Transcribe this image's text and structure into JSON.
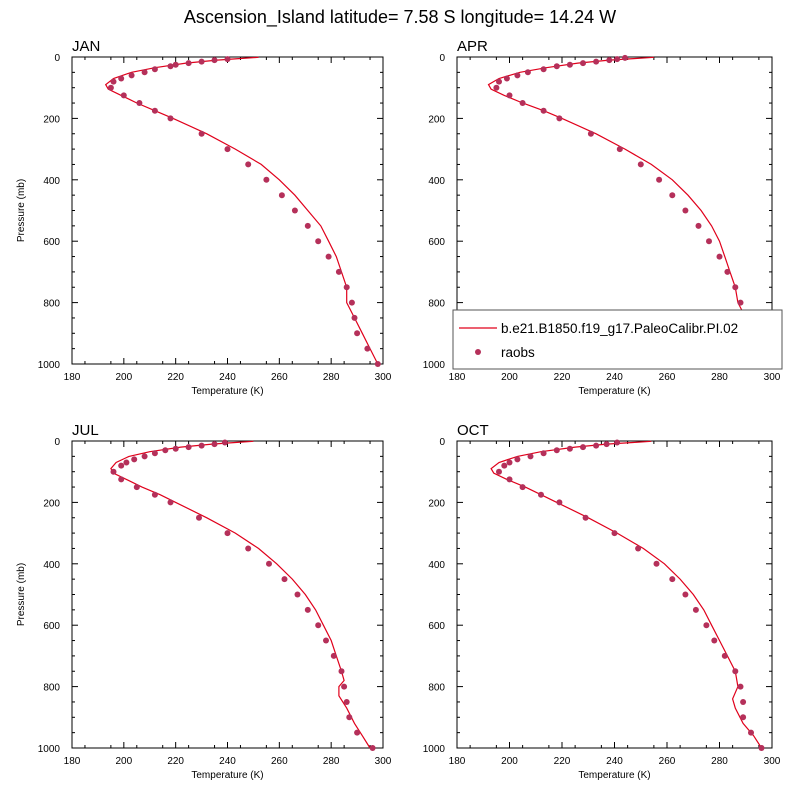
{
  "figure": {
    "title": "Ascension_Island  latitude= 7.58 S longitude= 14.24 W"
  },
  "colors": {
    "model_line": "#e0001b",
    "obs_marker": "#b5305a"
  },
  "chart_data": [
    {
      "type": "line",
      "panel_label": "JAN",
      "xlabel": "Temperature (K)",
      "ylabel": "Pressure (mb)",
      "xlim": [
        180,
        300
      ],
      "ylim": [
        1000,
        0
      ],
      "xticks": [
        "180",
        "200",
        "220",
        "240",
        "260",
        "280",
        "300"
      ],
      "yticks": [
        "0",
        "200",
        "400",
        "600",
        "800",
        "1000"
      ],
      "series": [
        {
          "kind": "line",
          "points": [
            [
              252,
              1
            ],
            [
              245,
              5
            ],
            [
              236,
              10
            ],
            [
              224,
              20
            ],
            [
              212,
              35
            ],
            [
              203,
              50
            ],
            [
              196,
              70
            ],
            [
              193,
              90
            ],
            [
              194,
              105
            ],
            [
              199,
              125
            ],
            [
              205,
              150
            ],
            [
              212,
              175
            ],
            [
              219,
              200
            ],
            [
              232,
              250
            ],
            [
              243,
              300
            ],
            [
              253,
              350
            ],
            [
              260,
              400
            ],
            [
              266,
              450
            ],
            [
              271,
              500
            ],
            [
              276,
              550
            ],
            [
              279,
              600
            ],
            [
              282,
              650
            ],
            [
              284,
              700
            ],
            [
              286,
              750
            ],
            [
              286,
              800
            ],
            [
              289,
              850
            ],
            [
              292,
              900
            ],
            [
              295,
              950
            ],
            [
              298,
              1000
            ]
          ]
        },
        {
          "kind": "scatter",
          "points": [
            [
              240,
              7
            ],
            [
              235,
              10
            ],
            [
              230,
              15
            ],
            [
              225,
              20
            ],
            [
              220,
              25
            ],
            [
              218,
              30
            ],
            [
              212,
              40
            ],
            [
              208,
              50
            ],
            [
              203,
              60
            ],
            [
              199,
              70
            ],
            [
              196,
              80
            ],
            [
              195,
              100
            ],
            [
              200,
              125
            ],
            [
              206,
              150
            ],
            [
              212,
              175
            ],
            [
              218,
              200
            ],
            [
              230,
              250
            ],
            [
              240,
              300
            ],
            [
              248,
              350
            ],
            [
              255,
              400
            ],
            [
              261,
              450
            ],
            [
              266,
              500
            ],
            [
              271,
              550
            ],
            [
              275,
              600
            ],
            [
              279,
              650
            ],
            [
              283,
              700
            ],
            [
              286,
              750
            ],
            [
              288,
              800
            ],
            [
              289,
              850
            ],
            [
              290,
              900
            ],
            [
              294,
              950
            ],
            [
              298,
              1000
            ]
          ]
        }
      ]
    },
    {
      "type": "line",
      "panel_label": "APR",
      "xlabel": "Temperature (K)",
      "xlim": [
        180,
        300
      ],
      "ylim": [
        1000,
        0
      ],
      "xticks": [
        "180",
        "200",
        "220",
        "240",
        "260",
        "280",
        "300"
      ],
      "yticks": [
        "0",
        "200",
        "400",
        "600",
        "800",
        "1000"
      ],
      "series": [
        {
          "name": "b.e21.B1850.f19_g17.PaleoCalibr.PI.02",
          "kind": "line",
          "points": [
            [
              255,
              1
            ],
            [
              248,
              5
            ],
            [
              238,
              10
            ],
            [
              226,
              20
            ],
            [
              214,
              35
            ],
            [
              204,
              50
            ],
            [
              196,
              70
            ],
            [
              192,
              90
            ],
            [
              193,
              105
            ],
            [
              198,
              125
            ],
            [
              205,
              150
            ],
            [
              213,
              175
            ],
            [
              220,
              200
            ],
            [
              233,
              250
            ],
            [
              244,
              300
            ],
            [
              254,
              350
            ],
            [
              262,
              400
            ],
            [
              268,
              450
            ],
            [
              273,
              500
            ],
            [
              277,
              550
            ],
            [
              280,
              600
            ],
            [
              282,
              650
            ],
            [
              284,
              700
            ],
            [
              286,
              750
            ],
            [
              287,
              800
            ],
            [
              290,
              850
            ],
            [
              293,
              900
            ],
            [
              296,
              950
            ],
            [
              299,
              1000
            ]
          ]
        },
        {
          "name": "raobs",
          "kind": "scatter",
          "points": [
            [
              244,
              3
            ],
            [
              241,
              7
            ],
            [
              238,
              10
            ],
            [
              233,
              15
            ],
            [
              228,
              20
            ],
            [
              223,
              25
            ],
            [
              218,
              30
            ],
            [
              213,
              40
            ],
            [
              207,
              50
            ],
            [
              203,
              60
            ],
            [
              199,
              70
            ],
            [
              196,
              80
            ],
            [
              195,
              100
            ],
            [
              200,
              125
            ],
            [
              205,
              150
            ],
            [
              213,
              175
            ],
            [
              219,
              200
            ],
            [
              231,
              250
            ],
            [
              242,
              300
            ],
            [
              250,
              350
            ],
            [
              257,
              400
            ],
            [
              262,
              450
            ],
            [
              267,
              500
            ],
            [
              272,
              550
            ],
            [
              276,
              600
            ],
            [
              280,
              650
            ],
            [
              283,
              700
            ],
            [
              286,
              750
            ],
            [
              288,
              800
            ],
            [
              289,
              850
            ],
            [
              291,
              900
            ],
            [
              295,
              950
            ],
            [
              299,
              1000
            ]
          ]
        }
      ]
    },
    {
      "type": "line",
      "panel_label": "JUL",
      "xlabel": "Temperature (K)",
      "ylabel": "Pressure (mb)",
      "xlim": [
        180,
        300
      ],
      "ylim": [
        1000,
        0
      ],
      "xticks": [
        "180",
        "200",
        "220",
        "240",
        "260",
        "280",
        "300"
      ],
      "yticks": [
        "0",
        "200",
        "400",
        "600",
        "800",
        "1000"
      ],
      "series": [
        {
          "kind": "line",
          "points": [
            [
              250,
              1
            ],
            [
              243,
              5
            ],
            [
              234,
              10
            ],
            [
              222,
              20
            ],
            [
              210,
              35
            ],
            [
              202,
              50
            ],
            [
              197,
              70
            ],
            [
              195,
              90
            ],
            [
              196,
              105
            ],
            [
              201,
              125
            ],
            [
              207,
              150
            ],
            [
              214,
              175
            ],
            [
              220,
              200
            ],
            [
              232,
              250
            ],
            [
              243,
              300
            ],
            [
              252,
              350
            ],
            [
              259,
              400
            ],
            [
              265,
              450
            ],
            [
              270,
              500
            ],
            [
              274,
              550
            ],
            [
              277,
              600
            ],
            [
              280,
              650
            ],
            [
              282,
              700
            ],
            [
              284,
              750
            ],
            [
              285,
              780
            ],
            [
              283,
              800
            ],
            [
              283,
              830
            ],
            [
              286,
              870
            ],
            [
              289,
              920
            ],
            [
              292,
              960
            ],
            [
              295,
              1000
            ]
          ]
        },
        {
          "kind": "scatter",
          "points": [
            [
              239,
              5
            ],
            [
              235,
              10
            ],
            [
              230,
              15
            ],
            [
              225,
              20
            ],
            [
              220,
              25
            ],
            [
              216,
              30
            ],
            [
              212,
              40
            ],
            [
              208,
              50
            ],
            [
              204,
              60
            ],
            [
              201,
              70
            ],
            [
              199,
              80
            ],
            [
              196,
              100
            ],
            [
              199,
              125
            ],
            [
              205,
              150
            ],
            [
              212,
              175
            ],
            [
              218,
              200
            ],
            [
              229,
              250
            ],
            [
              240,
              300
            ],
            [
              248,
              350
            ],
            [
              256,
              400
            ],
            [
              262,
              450
            ],
            [
              267,
              500
            ],
            [
              271,
              550
            ],
            [
              275,
              600
            ],
            [
              278,
              650
            ],
            [
              281,
              700
            ],
            [
              284,
              750
            ],
            [
              285,
              800
            ],
            [
              286,
              850
            ],
            [
              287,
              900
            ],
            [
              290,
              950
            ],
            [
              296,
              1000
            ]
          ]
        }
      ]
    },
    {
      "type": "line",
      "panel_label": "OCT",
      "xlabel": "Temperature (K)",
      "xlim": [
        180,
        300
      ],
      "ylim": [
        1000,
        0
      ],
      "xticks": [
        "180",
        "200",
        "220",
        "240",
        "260",
        "280",
        "300"
      ],
      "yticks": [
        "0",
        "200",
        "400",
        "600",
        "800",
        "1000"
      ],
      "series": [
        {
          "kind": "line",
          "points": [
            [
              254,
              1
            ],
            [
              247,
              5
            ],
            [
              237,
              10
            ],
            [
              225,
              20
            ],
            [
              212,
              35
            ],
            [
              203,
              50
            ],
            [
              196,
              70
            ],
            [
              193,
              90
            ],
            [
              194,
              105
            ],
            [
              199,
              125
            ],
            [
              206,
              150
            ],
            [
              212,
              175
            ],
            [
              218,
              200
            ],
            [
              230,
              250
            ],
            [
              241,
              300
            ],
            [
              251,
              350
            ],
            [
              259,
              400
            ],
            [
              265,
              450
            ],
            [
              270,
              500
            ],
            [
              274,
              550
            ],
            [
              277,
              600
            ],
            [
              280,
              650
            ],
            [
              283,
              700
            ],
            [
              286,
              750
            ],
            [
              287,
              800
            ],
            [
              285,
              840
            ],
            [
              286,
              870
            ],
            [
              289,
              920
            ],
            [
              293,
              960
            ],
            [
              296,
              1000
            ]
          ]
        },
        {
          "kind": "scatter",
          "points": [
            [
              241,
              5
            ],
            [
              237,
              10
            ],
            [
              233,
              15
            ],
            [
              228,
              20
            ],
            [
              223,
              25
            ],
            [
              218,
              30
            ],
            [
              213,
              40
            ],
            [
              208,
              50
            ],
            [
              203,
              60
            ],
            [
              200,
              70
            ],
            [
              198,
              80
            ],
            [
              196,
              100
            ],
            [
              200,
              125
            ],
            [
              205,
              150
            ],
            [
              212,
              175
            ],
            [
              219,
              200
            ],
            [
              229,
              250
            ],
            [
              240,
              300
            ],
            [
              249,
              350
            ],
            [
              256,
              400
            ],
            [
              262,
              450
            ],
            [
              267,
              500
            ],
            [
              271,
              550
            ],
            [
              275,
              600
            ],
            [
              278,
              650
            ],
            [
              282,
              700
            ],
            [
              286,
              750
            ],
            [
              288,
              800
            ],
            [
              289,
              850
            ],
            [
              289,
              900
            ],
            [
              292,
              950
            ],
            [
              296,
              1000
            ]
          ]
        }
      ]
    }
  ]
}
